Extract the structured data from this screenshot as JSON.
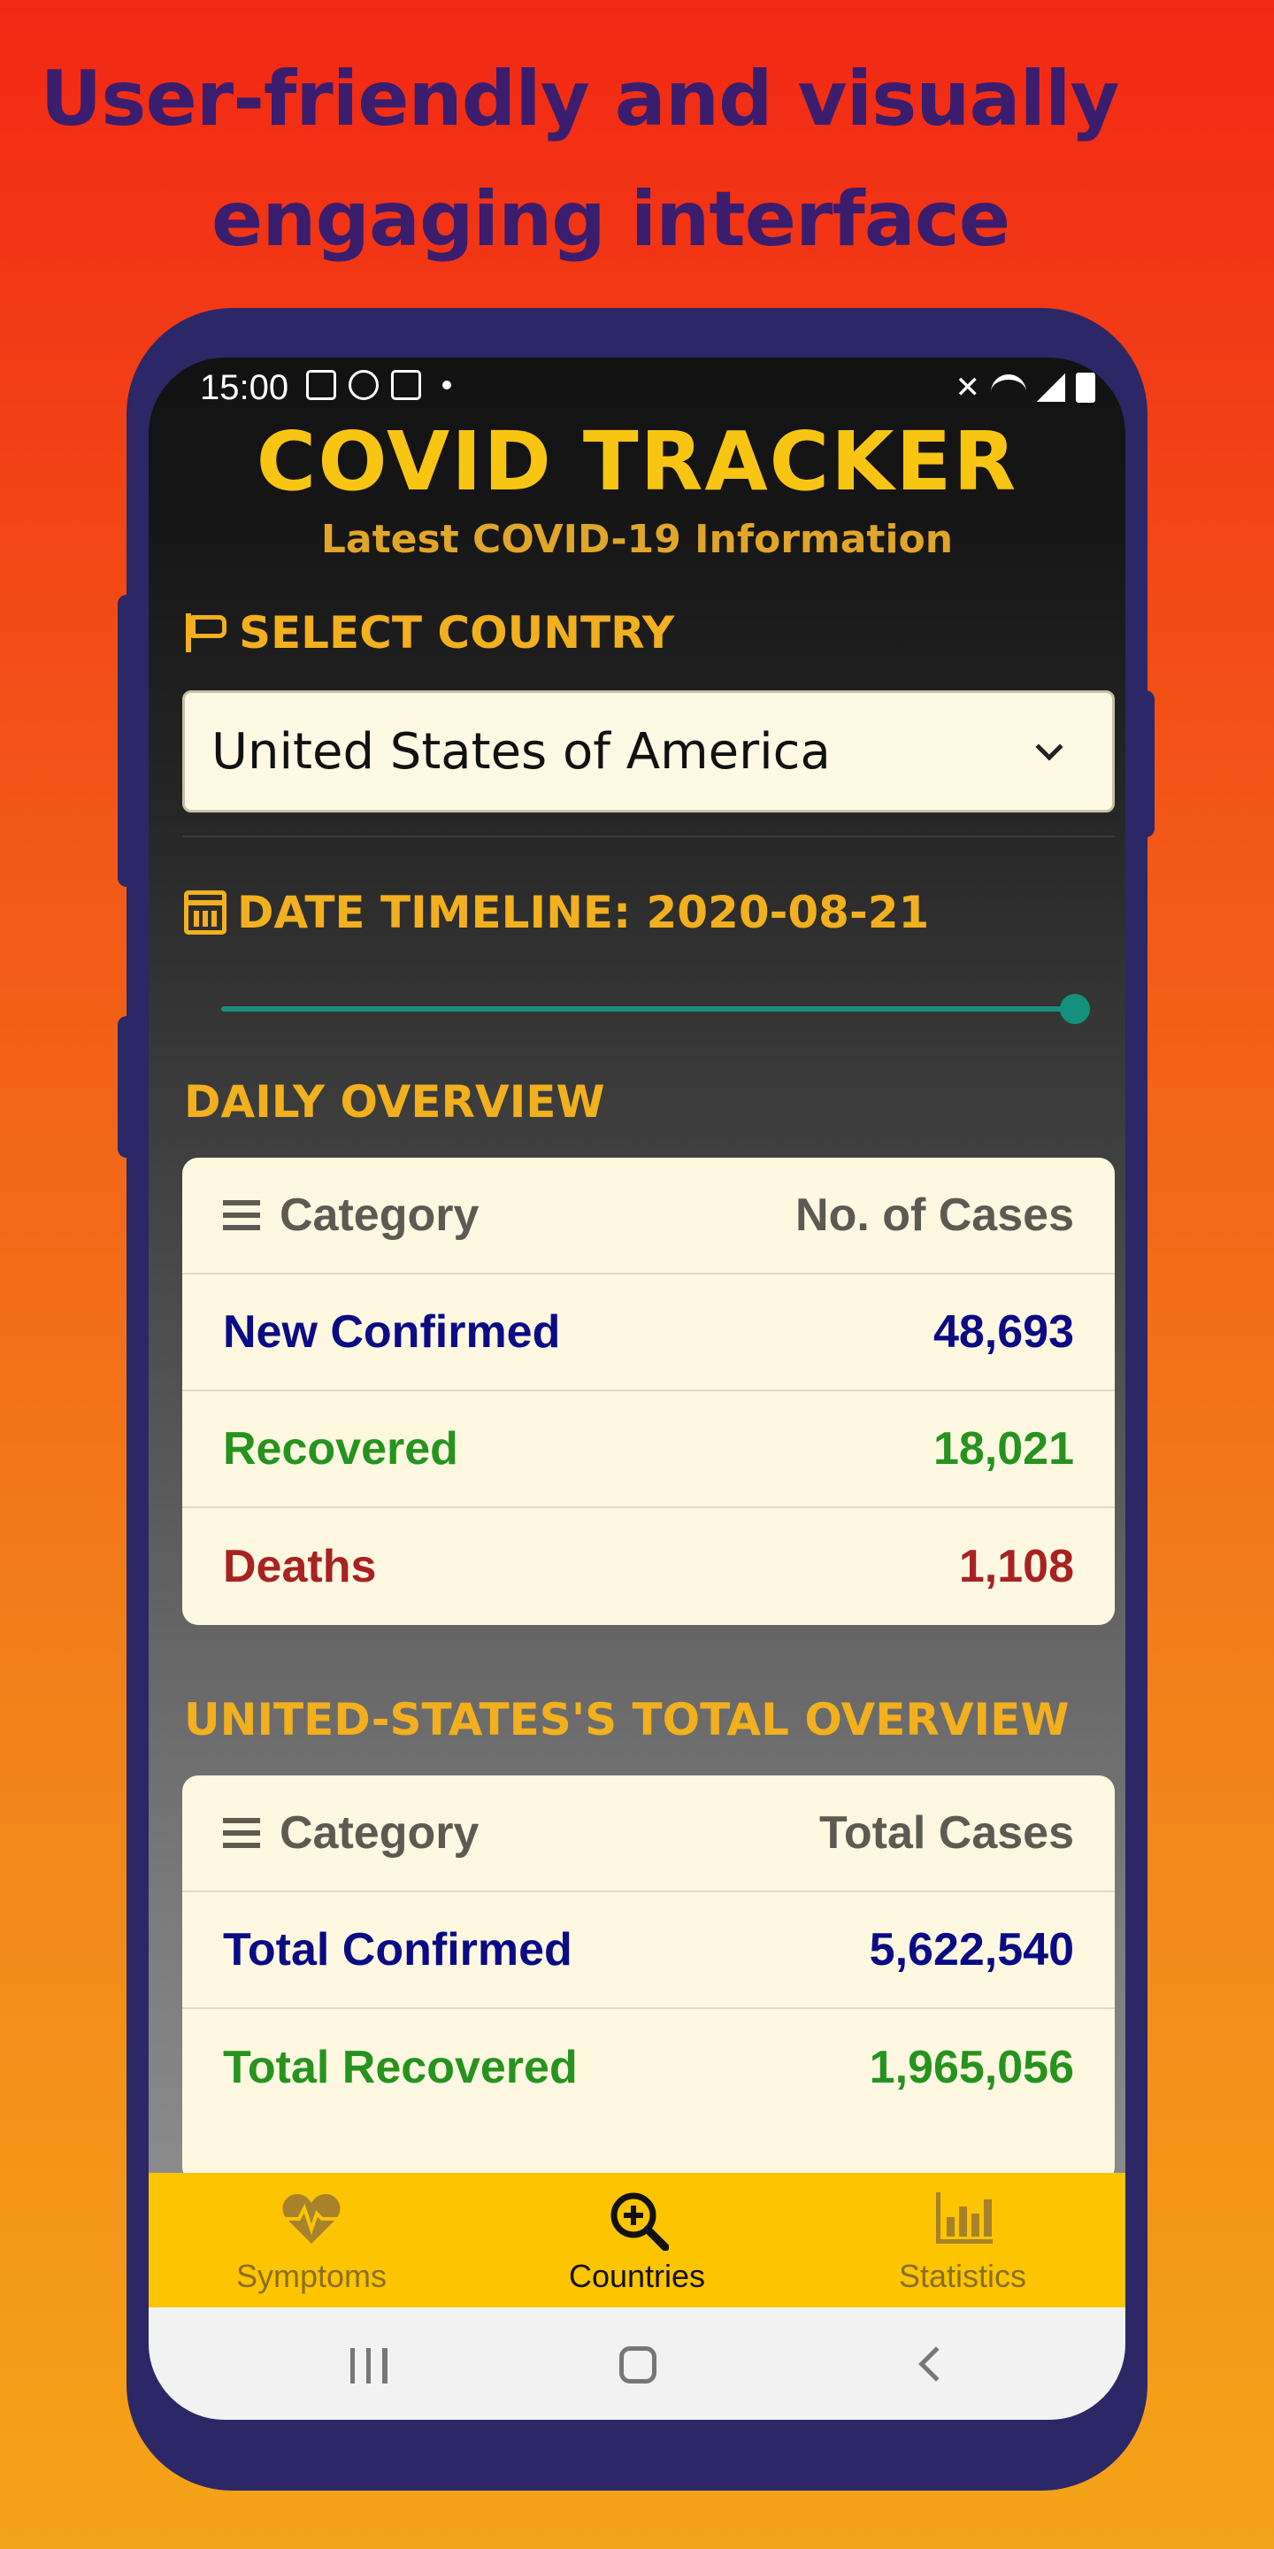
{
  "promo": {
    "headline_line1": "User-friendly and visually",
    "headline_line2": "engaging interface"
  },
  "status_bar": {
    "time": "15:00",
    "icons_left": [
      "image-icon",
      "facebook-icon",
      "gmail-icon",
      "dot-icon"
    ],
    "icons_right": [
      "mute-icon",
      "wifi-icon",
      "signal-icon",
      "battery-icon"
    ]
  },
  "app": {
    "title": "COVID TRACKER",
    "subtitle": "Latest COVID-19 Information"
  },
  "country": {
    "label": "SELECT COUNTRY",
    "selected": "United States of America"
  },
  "timeline": {
    "label": "DATE TIMELINE: 2020-08-21",
    "slider_position": 1.0
  },
  "daily": {
    "title": "DAILY OVERVIEW",
    "header_left": "Category",
    "header_right": "No. of Cases",
    "rows": [
      {
        "label": "New Confirmed",
        "value": "48,693",
        "color": "#0b0b85"
      },
      {
        "label": "Recovered",
        "value": "18,021",
        "color": "#27931f"
      },
      {
        "label": "Deaths",
        "value": "1,108",
        "color": "#a82222"
      }
    ]
  },
  "total": {
    "title": "UNITED-STATES'S TOTAL OVERVIEW",
    "header_left": "Category",
    "header_right": "Total Cases",
    "rows": [
      {
        "label": "Total Confirmed",
        "value": "5,622,540",
        "color": "#0b0b85"
      },
      {
        "label": "Total Recovered",
        "value": "1,965,056",
        "color": "#27931f"
      }
    ]
  },
  "bottom_nav": {
    "items": [
      {
        "label": "Symptoms",
        "icon": "heart-pulse-icon",
        "active": false
      },
      {
        "label": "Countries",
        "icon": "magnifier-plus-icon",
        "active": true
      },
      {
        "label": "Statistics",
        "icon": "bar-chart-icon",
        "active": false
      }
    ]
  },
  "colors": {
    "accent": "#f2b01e",
    "title": "#f9c513",
    "nav_bg": "#fdc400",
    "frame": "#2c2766"
  }
}
